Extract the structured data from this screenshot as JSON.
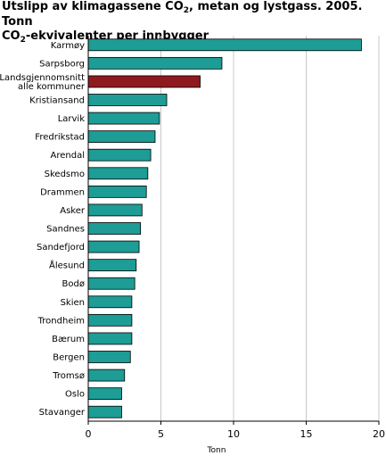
{
  "chart_data": {
    "type": "bar",
    "orientation": "horizontal",
    "title_parts": [
      {
        "t": "Utslipp av klimagassene CO",
        "sub": false
      },
      {
        "t": "2",
        "sub": true
      },
      {
        "t": ", metan og lystgass. 2005. Tonn",
        "sub": false
      },
      {
        "t": "\n",
        "sub": false
      },
      {
        "t": "CO",
        "sub": false
      },
      {
        "t": "2",
        "sub": true
      },
      {
        "t": "-ekvivalenter per innbygger",
        "sub": false
      }
    ],
    "xlabel": "Tonn",
    "xlim": [
      0,
      20
    ],
    "xticks": [
      0,
      5,
      10,
      15,
      20
    ],
    "grid": true,
    "categories": [
      "Karmøy",
      "Sarpsborg",
      "Landsgjennomsnitt\nalle kommuner",
      "Kristiansand",
      "Larvik",
      "Fredrikstad",
      "Arendal",
      "Skedsmo",
      "Drammen",
      "Asker",
      "Sandnes",
      "Sandefjord",
      "Ålesund",
      "Bodø",
      "Skien",
      "Trondheim",
      "Bærum",
      "Bergen",
      "Tromsø",
      "Oslo",
      "Stavanger"
    ],
    "values": [
      18.8,
      9.2,
      7.7,
      5.4,
      4.9,
      4.6,
      4.3,
      4.1,
      4.0,
      3.7,
      3.6,
      3.5,
      3.3,
      3.2,
      3.0,
      3.0,
      3.0,
      2.9,
      2.5,
      2.3,
      2.3
    ],
    "highlight_category": "Landsgjennomsnitt\nalle kommuner",
    "colors": {
      "bar": "#1e9c96",
      "highlight": "#8e1a1f",
      "grid": "#c8c8c8",
      "axis": "#000000",
      "bar_edge": "#000000"
    }
  }
}
